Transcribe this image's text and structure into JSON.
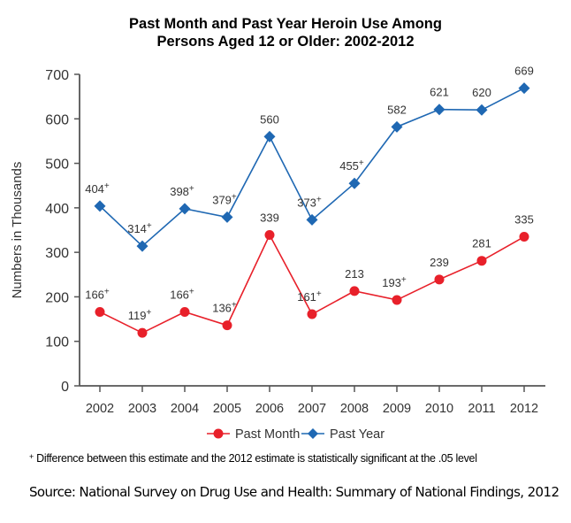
{
  "chart_data": {
    "type": "line",
    "title": "Past Month and Past Year Heroin Use Among Persons Aged 12 or Older: 2002-2012",
    "title_lines": [
      "Past Month and Past Year Heroin Use Among",
      "Persons Aged 12 or Older: 2002-2012"
    ],
    "xlabel": "",
    "ylabel": "Numbers in Thousands",
    "ylim": [
      0,
      700
    ],
    "yticks": [
      0,
      100,
      200,
      300,
      400,
      500,
      600,
      700
    ],
    "x": [
      "2002",
      "2003",
      "2004",
      "2005",
      "2006",
      "2007",
      "2008",
      "2009",
      "2010",
      "2011",
      "2012"
    ],
    "grid": false,
    "legend_position": "bottom-center",
    "series": [
      {
        "name": "Past Month",
        "color": "#e8202a",
        "marker": "circle",
        "values": [
          166,
          119,
          166,
          136,
          339,
          161,
          213,
          193,
          239,
          281,
          335
        ],
        "significant": [
          true,
          true,
          true,
          true,
          false,
          true,
          false,
          true,
          false,
          false,
          false
        ]
      },
      {
        "name": "Past Year",
        "color": "#1f68b3",
        "marker": "diamond",
        "values": [
          404,
          314,
          398,
          379,
          560,
          373,
          455,
          582,
          621,
          620,
          669
        ],
        "significant": [
          true,
          true,
          true,
          true,
          false,
          true,
          true,
          false,
          false,
          false,
          false
        ]
      }
    ],
    "significance_marker": "+",
    "footnote": "Difference between this estimate and the 2012 estimate is statistically significant at the .05 level",
    "source": "Source: National Survey on Drug Use and Health: Summary of National Findings, 2012"
  }
}
